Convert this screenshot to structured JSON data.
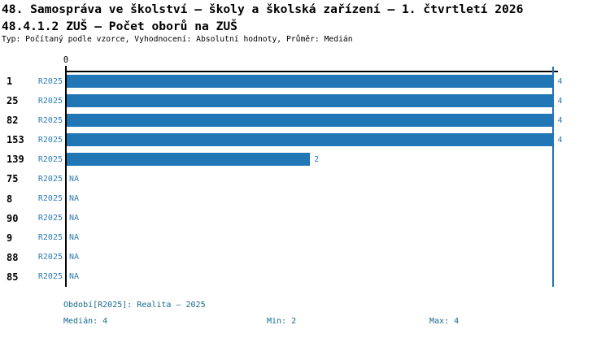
{
  "header": {
    "title_line1": "48. Samospráva ve školství – školy a školská zařízení – 1. čtvrtletí 2026",
    "title_line2": "48.4.1.2 ZUŠ – Počet oborů na ZUŠ",
    "meta": "Typ: Počítaný podle vzorce, Vyhodnocení: Absolutní hodnoty, Průměr: Medián"
  },
  "chart_data": {
    "type": "bar",
    "orientation": "horizontal",
    "title": "48.4.1.2 ZUŠ – Počet oborů na ZUŠ",
    "series_label": "R2025",
    "categories": [
      "1",
      "25",
      "82",
      "153",
      "139",
      "75",
      "8",
      "90",
      "9",
      "88",
      "85"
    ],
    "values": [
      4,
      4,
      4,
      4,
      2,
      null,
      null,
      null,
      null,
      null,
      null
    ],
    "value_labels": [
      "4",
      "4",
      "4",
      "4",
      "2",
      "NA",
      "NA",
      "NA",
      "NA",
      "NA",
      "NA"
    ],
    "na_label": "NA",
    "xlim": [
      0,
      4
    ],
    "axis_ticks": [
      "0"
    ],
    "max_gridline_value": 4,
    "grid": false,
    "legend_position": "none",
    "bar_color": "#2176b5",
    "label_color": "#2e7cb5"
  },
  "footer": {
    "period": "Období[R2025]: Realita – 2025",
    "median": "Medián: 4",
    "min": "Min: 2",
    "max": "Max: 4",
    "text_color": "#17698c"
  }
}
